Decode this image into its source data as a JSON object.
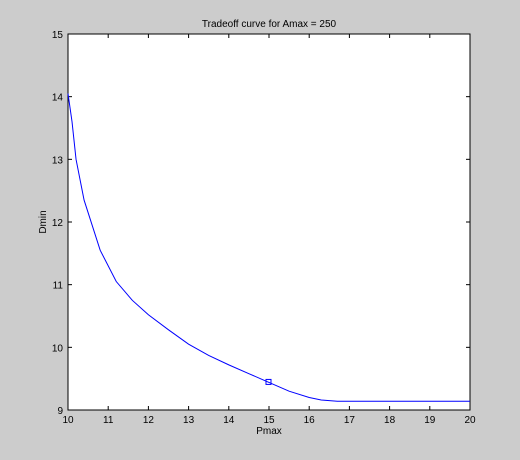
{
  "figure": {
    "background_color": "#cccccc",
    "axes_background_color": "#ffffff",
    "line_color": "#0000ff"
  },
  "chart_data": {
    "type": "line",
    "title": "Tradeoff curve for Amax = 250",
    "xlabel": "Pmax",
    "ylabel": "Dmin",
    "xlim": [
      10,
      20
    ],
    "ylim": [
      9,
      15
    ],
    "xticks": [
      10,
      11,
      12,
      13,
      14,
      15,
      16,
      17,
      18,
      19,
      20
    ],
    "yticks": [
      9,
      10,
      11,
      12,
      13,
      14,
      15
    ],
    "grid": false,
    "series": [
      {
        "x": [
          10,
          10.1,
          10.2,
          10.4,
          10.8,
          11.2,
          11.6,
          12,
          12.5,
          13,
          13.5,
          14,
          14.5,
          15,
          15.5,
          16,
          16.3,
          16.7,
          17,
          18,
          19,
          20
        ],
        "y": [
          14.05,
          13.6,
          13.0,
          12.35,
          11.55,
          11.05,
          10.75,
          10.52,
          10.28,
          10.05,
          9.87,
          9.72,
          9.58,
          9.44,
          9.3,
          9.2,
          9.16,
          9.14,
          9.14,
          9.14,
          9.14,
          9.14
        ]
      }
    ],
    "highlight_point": {
      "x": 15,
      "y": 9.44,
      "marker": "square"
    }
  }
}
